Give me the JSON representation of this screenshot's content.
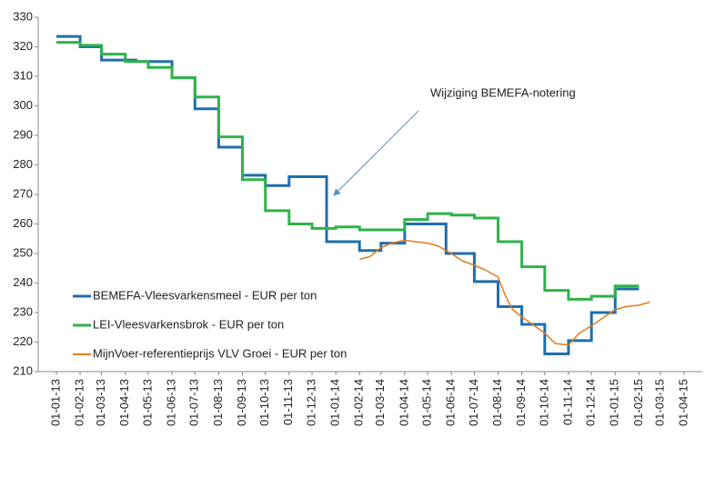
{
  "chart_data": {
    "type": "line",
    "annotation": "Wijziging BEMEFA-notering",
    "ylim": [
      210,
      330
    ],
    "yticks": [
      210,
      220,
      230,
      240,
      250,
      260,
      270,
      280,
      290,
      300,
      310,
      320,
      330
    ],
    "xlim": [
      "01-01-13",
      "01-04-15"
    ],
    "xticks": [
      "01-01-13",
      "01-02-13",
      "01-03-13",
      "01-04-13",
      "01-05-13",
      "01-06-13",
      "01-07-13",
      "01-08-13",
      "01-09-13",
      "01-10-13",
      "01-11-13",
      "01-12-13",
      "01-01-14",
      "01-02-14",
      "01-03-14",
      "01-04-14",
      "01-05-14",
      "01-06-14",
      "01-07-14",
      "01-08-14",
      "01-09-14",
      "01-10-14",
      "01-11-14",
      "01-12-14",
      "01-01-15",
      "01-02-15",
      "01-03-15",
      "01-04-15"
    ],
    "grid": false,
    "legend": "lower-left",
    "series": [
      {
        "name": "BEMEFA-Vleesvarkensmeel - EUR per ton",
        "color": "#1f6fad",
        "x": [
          "01-01-13",
          "01-02-13",
          "01-02-13",
          "01-03-13",
          "01-03-13",
          "15-04-13",
          "15-04-13",
          "01-06-13",
          "01-06-13",
          "01-07-13",
          "01-07-13",
          "01-08-13",
          "01-08-13",
          "01-09-13",
          "01-09-13",
          "01-10-13",
          "01-10-13",
          "01-11-13",
          "01-11-13",
          "20-12-13",
          "20-12-13",
          "01-02-14",
          "01-02-14",
          "01-03-14",
          "01-03-14",
          "01-04-14",
          "01-04-14",
          "25-05-14",
          "25-05-14",
          "01-07-14",
          "01-07-14",
          "01-08-14",
          "01-08-14",
          "01-09-14",
          "01-09-14",
          "01-10-14",
          "01-10-14",
          "01-11-14",
          "01-11-14",
          "01-12-14",
          "01-12-14",
          "01-01-15",
          "01-01-15",
          "01-02-15"
        ],
        "values": [
          323.5,
          323.5,
          320,
          320,
          315.5,
          315.5,
          315,
          315,
          309.5,
          309.5,
          299,
          299,
          286,
          286,
          276.5,
          276.5,
          273,
          273,
          276,
          276,
          254,
          254,
          251,
          251,
          253.5,
          253.5,
          260,
          260,
          250,
          250,
          240.5,
          240.5,
          232,
          232,
          226,
          226,
          216,
          216,
          220.5,
          220.5,
          230,
          230,
          238,
          238
        ]
      },
      {
        "name": "LEI-Vleesvarkensbrok - EUR per ton",
        "color": "#2eb34a",
        "x": [
          "01-01-13",
          "01-02-13",
          "01-02-13",
          "01-03-13",
          "01-03-13",
          "01-04-13",
          "01-04-13",
          "01-05-13",
          "01-05-13",
          "01-06-13",
          "01-06-13",
          "01-07-13",
          "01-07-13",
          "01-08-13",
          "01-08-13",
          "01-09-13",
          "01-09-13",
          "01-10-13",
          "01-10-13",
          "01-11-13",
          "01-11-13",
          "01-12-13",
          "01-12-13",
          "01-01-14",
          "01-01-14",
          "01-02-14",
          "01-02-14",
          "01-04-14",
          "01-04-14",
          "01-05-14",
          "01-05-14",
          "01-06-14",
          "01-06-14",
          "01-07-14",
          "01-07-14",
          "01-08-14",
          "01-08-14",
          "01-09-14",
          "01-09-14",
          "01-10-14",
          "01-10-14",
          "01-11-14",
          "01-11-14",
          "01-12-14",
          "01-12-14",
          "01-01-15",
          "01-01-15",
          "01-02-15"
        ],
        "values": [
          321.5,
          321.5,
          320.5,
          320.5,
          317.5,
          317.5,
          315,
          315,
          313,
          313,
          309.5,
          309.5,
          303,
          303,
          289.5,
          289.5,
          275,
          275,
          264.5,
          264.5,
          260,
          260,
          258.5,
          258.5,
          259,
          259,
          258,
          258,
          261.5,
          261.5,
          263.5,
          263.5,
          263,
          263,
          262,
          262,
          254,
          254,
          245.5,
          245.5,
          237.5,
          237.5,
          234.5,
          234.5,
          235.5,
          235.5,
          239,
          239
        ]
      },
      {
        "name": "MijnVoer-referentieprijs VLV Groei - EUR per ton",
        "color": "#e07b1e",
        "x": [
          "01-02-14",
          "15-02-14",
          "01-03-14",
          "15-03-14",
          "01-04-14",
          "15-04-14",
          "01-05-14",
          "15-05-14",
          "01-06-14",
          "15-06-14",
          "01-07-14",
          "15-07-14",
          "01-08-14",
          "10-08-14",
          "20-08-14",
          "01-09-14",
          "15-09-14",
          "01-10-14",
          "15-10-14",
          "01-11-14",
          "15-11-14",
          "01-12-14",
          "15-12-14",
          "01-01-15",
          "15-01-15",
          "01-02-15",
          "15-02-15"
        ],
        "values": [
          248,
          249,
          252,
          253.5,
          254.5,
          254,
          253.5,
          252.5,
          250,
          247.5,
          246,
          244.5,
          242,
          236,
          231,
          228.5,
          226,
          223,
          219.5,
          219,
          223,
          225.5,
          228,
          231,
          232,
          232.5,
          233.5
        ]
      }
    ]
  }
}
